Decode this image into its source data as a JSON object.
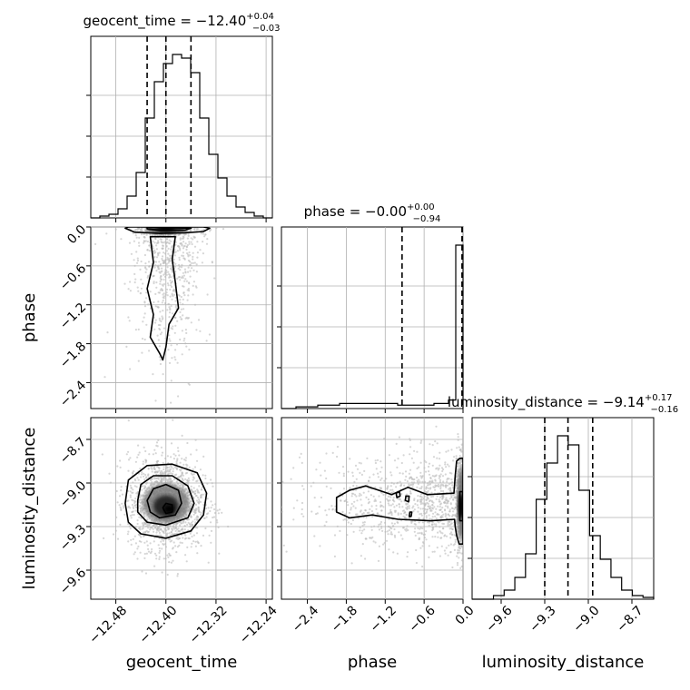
{
  "chart_data": {
    "type": "corner",
    "parameters": [
      {
        "name": "geocent_time",
        "xlabel": "geocent_time",
        "range": [
          -12.52,
          -12.23
        ],
        "ticks": [
          -12.48,
          -12.4,
          -12.32,
          -12.24
        ],
        "tick_labels": [
          "−12.48",
          "−12.40",
          "−12.32",
          "−12.24"
        ],
        "title": {
          "main": "geocent_time = −12.40",
          "plus": "+0.04",
          "minus": "−0.03"
        },
        "quantiles": [
          -12.43,
          -12.4,
          -12.36
        ],
        "histogram": [
          0,
          1,
          2,
          5,
          12,
          25,
          55,
          75,
          85,
          90,
          88,
          80,
          55,
          35,
          22,
          12,
          6,
          3,
          1,
          0
        ]
      },
      {
        "name": "phase",
        "xlabel": "phase",
        "ylabel": "phase",
        "range": [
          -2.8,
          0.0
        ],
        "ticks": [
          -2.4,
          -1.8,
          -1.2,
          -0.6,
          0.0
        ],
        "tick_labels": [
          "−2.4",
          "−1.8",
          "−1.2",
          "−0.6",
          "0.0"
        ],
        "title": {
          "main": "phase = −0.00",
          "plus": "+0.00",
          "minus": "−0.94"
        },
        "quantiles": [
          -0.94,
          -0.0,
          0.0
        ],
        "histogram": [
          0,
          0,
          1,
          1,
          1,
          2,
          2,
          2,
          3,
          3,
          3,
          3,
          3,
          3,
          3,
          3,
          2,
          2,
          2,
          2,
          2,
          3,
          3,
          5,
          96
        ]
      },
      {
        "name": "luminosity_distance",
        "xlabel": "luminosity_distance",
        "ylabel": "luminosity_distance",
        "range": [
          -9.8,
          -8.55
        ],
        "ticks": [
          -9.6,
          -9.3,
          -9.0,
          -8.7
        ],
        "tick_labels": [
          "−9.6",
          "−9.3",
          "−9.0",
          "−8.7"
        ],
        "title": {
          "main": "luminosity_distance = −9.14",
          "plus": "+0.17",
          "minus": "−0.16"
        },
        "quantiles": [
          -9.3,
          -9.14,
          -8.97
        ],
        "histogram": [
          0,
          0,
          2,
          5,
          12,
          25,
          55,
          75,
          90,
          85,
          60,
          35,
          22,
          12,
          5,
          2,
          1
        ]
      }
    ],
    "grid": true,
    "colors": {
      "line": "#000000",
      "grid": "#b0b0b0",
      "scatter": "#bbbbbb",
      "density": "#000000"
    }
  }
}
